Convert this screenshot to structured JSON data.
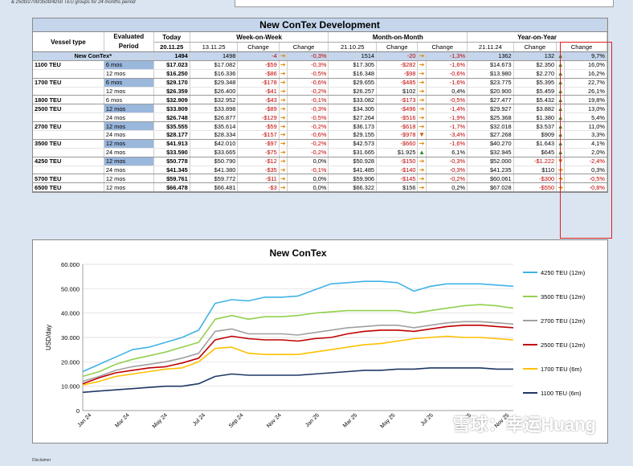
{
  "top_note": "& 2500/2700/3500/4250 TEU groups for 24 months period",
  "table": {
    "title": "New ConTex Development",
    "headers": {
      "vessel_type": "Vessel type",
      "evaluated_period": "Evaluated Period",
      "today": "Today",
      "week": "Week-on-Week",
      "month": "Month-on-Month",
      "year": "Year-on-Year"
    },
    "dates": {
      "today": "20.11.25",
      "week": "13.11.25",
      "change": "Change",
      "month": "21.10.25",
      "year": "21.11.24"
    },
    "rows": [
      {
        "type": "New ConTex*",
        "period": "",
        "today": "1494",
        "w": "1498",
        "wc": "-4",
        "wa": "side",
        "wp": "-0,3%",
        "m": "1514",
        "mc": "-20",
        "ma": "side",
        "mp": "-1,3%",
        "y": "1362",
        "yc": "132",
        "ya": "up",
        "yp": "9,7%",
        "newc": true
      },
      {
        "type": "1100 TEU",
        "period": "6 mos",
        "today": "$17.023",
        "w": "$17.082",
        "wc": "-$59",
        "wa": "side",
        "wp": "-0,3%",
        "m": "$17.305",
        "mc": "-$282",
        "ma": "side",
        "mp": "-1,6%",
        "y": "$14.673",
        "yc": "$2.350",
        "ya": "up",
        "yp": "16,0%",
        "hl": true
      },
      {
        "type": "",
        "period": "12 mos",
        "today": "$16.250",
        "w": "$16.336",
        "wc": "-$86",
        "wa": "side",
        "wp": "-0,5%",
        "m": "$16.348",
        "mc": "-$98",
        "ma": "side",
        "mp": "-0,6%",
        "y": "$13.980",
        "yc": "$2.270",
        "ya": "up",
        "yp": "16,2%"
      },
      {
        "type": "1700 TEU",
        "period": "6 mos",
        "today": "$29.170",
        "w": "$29.348",
        "wc": "-$178",
        "wa": "side",
        "wp": "-0,6%",
        "m": "$29.655",
        "mc": "-$485",
        "ma": "side",
        "mp": "-1,6%",
        "y": "$23.775",
        "yc": "$5.395",
        "ya": "up",
        "yp": "22,7%",
        "hl": true
      },
      {
        "type": "",
        "period": "12 mos",
        "today": "$26.359",
        "w": "$26.400",
        "wc": "-$41",
        "wa": "side",
        "wp": "-0,2%",
        "m": "$26.257",
        "mc": "$102",
        "ma": "side",
        "mp": "0,4%",
        "y": "$20.900",
        "yc": "$5.459",
        "ya": "up",
        "yp": "26,1%"
      },
      {
        "type": "1800 TEU",
        "period": "6 mos",
        "today": "$32.909",
        "w": "$32.952",
        "wc": "-$43",
        "wa": "side",
        "wp": "-0,1%",
        "m": "$33.082",
        "mc": "-$173",
        "ma": "side",
        "mp": "-0,5%",
        "y": "$27.477",
        "yc": "$5.432",
        "ya": "up",
        "yp": "19,8%"
      },
      {
        "type": "2500 TEU",
        "period": "12 mos",
        "today": "$33.809",
        "w": "$33.898",
        "wc": "-$89",
        "wa": "side",
        "wp": "-0,3%",
        "m": "$34.305",
        "mc": "-$496",
        "ma": "side",
        "mp": "-1,4%",
        "y": "$29.927",
        "yc": "$3.882",
        "ya": "up",
        "yp": "13,0%",
        "hl": true
      },
      {
        "type": "",
        "period": "24 mos",
        "today": "$26.748",
        "w": "$26.877",
        "wc": "-$129",
        "wa": "side",
        "wp": "-0,5%",
        "m": "$27.264",
        "mc": "-$516",
        "ma": "side",
        "mp": "-1,9%",
        "y": "$25.368",
        "yc": "$1.380",
        "ya": "up",
        "yp": "5,4%"
      },
      {
        "type": "2700 TEU",
        "period": "12 mos",
        "today": "$35.555",
        "w": "$35.614",
        "wc": "-$59",
        "wa": "side",
        "wp": "-0,2%",
        "m": "$36.173",
        "mc": "-$618",
        "ma": "side",
        "mp": "-1,7%",
        "y": "$32.018",
        "yc": "$3.537",
        "ya": "up",
        "yp": "11,0%",
        "hl": true
      },
      {
        "type": "",
        "period": "24 mos",
        "today": "$28.177",
        "w": "$28.334",
        "wc": "-$157",
        "wa": "side",
        "wp": "-0,6%",
        "m": "$29.155",
        "mc": "-$978",
        "ma": "dn",
        "mp": "-3,4%",
        "y": "$27.268",
        "yc": "$909",
        "ya": "up",
        "yp": "3,3%"
      },
      {
        "type": "3500 TEU",
        "period": "12 mos",
        "today": "$41.913",
        "w": "$42.010",
        "wc": "-$97",
        "wa": "side",
        "wp": "-0,2%",
        "m": "$42.573",
        "mc": "-$660",
        "ma": "side",
        "mp": "-1,6%",
        "y": "$40.270",
        "yc": "$1.643",
        "ya": "up",
        "yp": "4,1%",
        "hl": true
      },
      {
        "type": "",
        "period": "24 mos",
        "today": "$33.590",
        "w": "$33.665",
        "wc": "-$75",
        "wa": "side",
        "wp": "-0,2%",
        "m": "$31.665",
        "mc": "$1.925",
        "ma": "up",
        "mp": "6,1%",
        "y": "$32.945",
        "yc": "$645",
        "ya": "up",
        "yp": "2,0%"
      },
      {
        "type": "4250 TEU",
        "period": "12 mos",
        "today": "$50.778",
        "w": "$50.790",
        "wc": "-$12",
        "wa": "side",
        "wp": "0,0%",
        "m": "$50.928",
        "mc": "-$150",
        "ma": "side",
        "mp": "-0,3%",
        "y": "$52.000",
        "yc": "-$1.222",
        "ya": "dn",
        "yp": "-2,4%",
        "hl": true
      },
      {
        "type": "",
        "period": "24 mos",
        "today": "$41.345",
        "w": "$41.380",
        "wc": "-$35",
        "wa": "side",
        "wp": "-0,1%",
        "m": "$41.485",
        "mc": "-$140",
        "ma": "side",
        "mp": "-0,3%",
        "y": "$41.235",
        "yc": "$110",
        "ya": "side",
        "yp": "0,3%"
      },
      {
        "type": "5700 TEU",
        "period": "12 mos",
        "today": "$59.761",
        "w": "$59.772",
        "wc": "-$11",
        "wa": "side",
        "wp": "0,0%",
        "m": "$59.906",
        "mc": "-$145",
        "ma": "side",
        "mp": "-0,2%",
        "y": "$60.061",
        "yc": "-$300",
        "ya": "side",
        "yp": "-0,5%"
      },
      {
        "type": "6500 TEU",
        "period": "12 mos",
        "today": "$66.478",
        "w": "$66.481",
        "wc": "-$3",
        "wa": "side",
        "wp": "0,0%",
        "m": "$66.322",
        "mc": "$156",
        "ma": "side",
        "mp": "0,2%",
        "y": "$67.028",
        "yc": "-$550",
        "ya": "side",
        "yp": "-0,8%"
      }
    ]
  },
  "chart_data": {
    "type": "line",
    "title": "New ConTex",
    "ylabel": "USD/day",
    "ylim": [
      0,
      60000
    ],
    "yticks": [
      "0",
      "10.000",
      "20.000",
      "30.000",
      "40.000",
      "50.000",
      "60.000"
    ],
    "xticks": [
      "Jan 24",
      "Mar 24",
      "May 24",
      "Jul 24",
      "Sep 24",
      "Nov 24",
      "Jan 25",
      "Mar 25",
      "May 25",
      "Jul 25",
      "Sep 25",
      "Nov 25"
    ],
    "series": [
      {
        "name": "4250 TEU (12m)",
        "color": "#3fb3e6",
        "values": [
          16000,
          19000,
          22000,
          25000,
          26000,
          28000,
          30000,
          33000,
          44000,
          45500,
          45000,
          46500,
          46500,
          47000,
          49500,
          52000,
          52500,
          53000,
          53000,
          52500,
          49000,
          51000,
          52000,
          52000,
          52000,
          51500,
          51000
        ]
      },
      {
        "name": "3500 TEU (12m)",
        "color": "#92d050",
        "values": [
          14000,
          16000,
          19000,
          21000,
          22500,
          24000,
          26000,
          28000,
          37500,
          39000,
          37500,
          38500,
          38500,
          39000,
          40000,
          40500,
          41000,
          41000,
          41000,
          41000,
          40000,
          41000,
          42000,
          43000,
          43500,
          43000,
          42000
        ]
      },
      {
        "name": "2700 TEU (12m)",
        "color": "#a0a0a0",
        "values": [
          12000,
          14000,
          16500,
          18000,
          19000,
          20000,
          21500,
          23500,
          32500,
          33500,
          31500,
          31500,
          31500,
          31000,
          32000,
          33000,
          34000,
          34500,
          35000,
          35000,
          34000,
          35000,
          36000,
          36500,
          36500,
          36000,
          35500
        ]
      },
      {
        "name": "2500 TEU (12m)",
        "color": "#c00000",
        "values": [
          11000,
          13500,
          15500,
          16500,
          17500,
          18000,
          19500,
          21500,
          29000,
          30500,
          29500,
          29000,
          29000,
          28500,
          29500,
          30000,
          31500,
          32500,
          33000,
          33000,
          32500,
          33500,
          34500,
          35000,
          35000,
          34500,
          34000
        ]
      },
      {
        "name": "1700 TEU (6m)",
        "color": "#ffc000",
        "values": [
          10500,
          12000,
          14000,
          15000,
          16000,
          17000,
          17500,
          20000,
          25500,
          26000,
          23500,
          23000,
          23000,
          23000,
          24000,
          25000,
          26000,
          27000,
          27500,
          28500,
          29500,
          30000,
          30500,
          30000,
          30000,
          29500,
          29000
        ]
      },
      {
        "name": "1100 TEU (6m)",
        "color": "#1f3864",
        "values": [
          7500,
          8000,
          8500,
          9000,
          9500,
          10000,
          10000,
          11000,
          14000,
          15000,
          14500,
          14500,
          14500,
          14500,
          15000,
          15500,
          16000,
          16500,
          16500,
          17000,
          17000,
          17500,
          17500,
          17500,
          17500,
          17000,
          17000
        ]
      }
    ]
  },
  "watermark": "雪球：幸运Huang",
  "disclaimer": "Disclaimer"
}
